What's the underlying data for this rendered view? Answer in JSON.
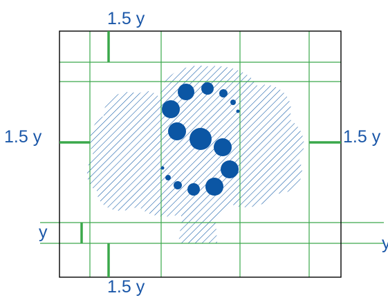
{
  "labels": {
    "top": "1.5 y",
    "bottom": "1.5 y",
    "left": "1.5 y",
    "right": "1.5 y",
    "small_left": "y",
    "small_right": "y"
  },
  "colors": {
    "frame": "#000000",
    "guide": "#3aa84a",
    "blue": "#0b56a4",
    "label": "#1b57a8",
    "background": "#ffffff"
  }
}
